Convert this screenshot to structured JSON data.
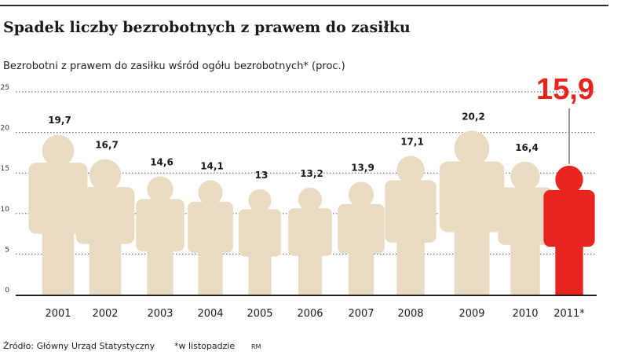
{
  "header": {
    "title": "Spadek liczby bezrobotnych z prawem do zasiłku",
    "subtitle": "Bezrobotni z prawem do zasiłku wśród ogółu bezrobotnych* (proc.)"
  },
  "footer": {
    "source": "Źródło: Główny Urząd Statystyczny",
    "note": "*w listopadzie",
    "credit": "RM"
  },
  "colors": {
    "figure": "#e9dac2",
    "highlight": "#e8241f",
    "grid": "#555555",
    "axis": "#222222"
  },
  "chart_data": {
    "type": "bar",
    "title": "Spadek liczby bezrobotnych z prawem do zasiłku",
    "subtitle": "Bezrobotni z prawem do zasiłku wśród ogółu bezrobotnych* (proc.)",
    "categories": [
      "2001",
      "2002",
      "2003",
      "2004",
      "2005",
      "2006",
      "2007",
      "2008",
      "2009",
      "2010",
      "2011*"
    ],
    "values": [
      19.7,
      16.7,
      14.6,
      14.1,
      13,
      13.2,
      13.9,
      17.1,
      20.2,
      16.4,
      15.9
    ],
    "value_labels": [
      "19,7",
      "16,7",
      "14,6",
      "14,1",
      "13",
      "13,2",
      "13,9",
      "17,1",
      "20,2",
      "16,4",
      "15,9"
    ],
    "highlight_index": 10,
    "ylim": [
      0,
      25
    ],
    "yticks": [
      0,
      5,
      10,
      15,
      20,
      25
    ],
    "grid": true,
    "xlabel": "",
    "ylabel": ""
  }
}
